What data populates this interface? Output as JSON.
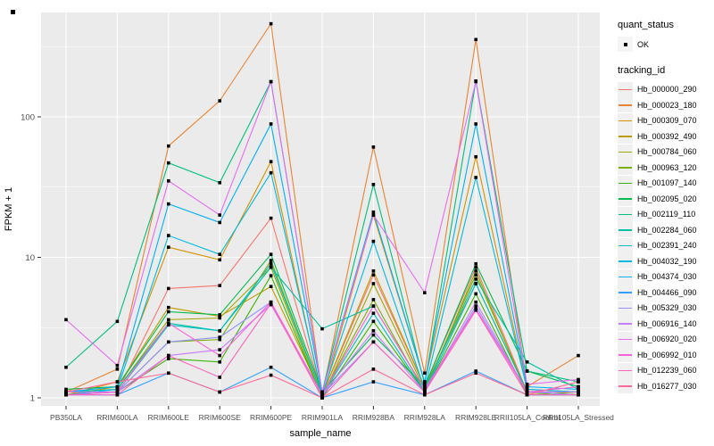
{
  "chart_data": {
    "type": "line",
    "title": "",
    "xlabel": "sample_name",
    "ylabel": "FPKM + 1",
    "y_scale": "log10",
    "y_ticks": [
      "1",
      "10",
      "100"
    ],
    "ylim": [
      1,
      550
    ],
    "grid": "on",
    "legend_position": "right",
    "point_shape": "filled-square-black",
    "categories": [
      "PB350LA",
      "RRIM600LA",
      "RRIM600LE",
      "RRIM600SE",
      "RRIM600PE",
      "RRIM901LA",
      "RRIM928BA",
      "RRIM928LA",
      "RRIM928LE",
      "RRII105LA_Control",
      "RRII105LA_Stressed"
    ],
    "series": [
      {
        "name": "Hb_000000_290",
        "color": "#F8766D",
        "values": [
          1.1,
          1.1,
          6.0,
          6.3,
          19,
          1.05,
          7.5,
          1.2,
          8.5,
          1.1,
          1.05
        ]
      },
      {
        "name": "Hb_000023_180",
        "color": "#EA8331",
        "values": [
          1.1,
          1.6,
          62,
          130,
          460,
          1.05,
          61,
          1.5,
          355,
          1.2,
          2.0
        ]
      },
      {
        "name": "Hb_000309_070",
        "color": "#D89000",
        "values": [
          1.05,
          1.3,
          11.8,
          9.6,
          48,
          1.0,
          20,
          1.3,
          52,
          1.15,
          1.1
        ]
      },
      {
        "name": "Hb_000392_490",
        "color": "#C09B00",
        "values": [
          1.05,
          1.2,
          4.4,
          3.8,
          6.2,
          1.05,
          8.0,
          1.2,
          6.5,
          1.1,
          1.05
        ]
      },
      {
        "name": "Hb_000784_060",
        "color": "#A3A500",
        "values": [
          1.1,
          1.15,
          3.6,
          3.7,
          8.5,
          1.0,
          6.5,
          1.15,
          7.5,
          1.1,
          1.05
        ]
      },
      {
        "name": "Hb_000963_120",
        "color": "#7CAE00",
        "values": [
          1.05,
          1.1,
          2.5,
          2.6,
          9.5,
          1.05,
          5.0,
          1.1,
          8.0,
          1.05,
          1.1
        ]
      },
      {
        "name": "Hb_001097_140",
        "color": "#39B600",
        "values": [
          1.05,
          1.1,
          1.9,
          1.8,
          7.4,
          1.0,
          3.5,
          1.1,
          5.5,
          1.05,
          1.05
        ]
      },
      {
        "name": "Hb_002095_020",
        "color": "#00BB4E",
        "values": [
          1.15,
          1.2,
          4.1,
          3.9,
          10.5,
          1.1,
          2.8,
          1.2,
          9.0,
          1.55,
          1.2
        ]
      },
      {
        "name": "Hb_002119_110",
        "color": "#00BF7D",
        "values": [
          1.65,
          3.5,
          47,
          34,
          178,
          1.1,
          33,
          1.25,
          180,
          1.55,
          1.3
        ]
      },
      {
        "name": "Hb_002284_060",
        "color": "#00C1A3",
        "values": [
          1.1,
          1.15,
          3.4,
          3.0,
          8.5,
          3.1,
          4.5,
          1.15,
          7.0,
          1.8,
          1.15
        ]
      },
      {
        "name": "Hb_002391_240",
        "color": "#00BFC4",
        "values": [
          1.1,
          1.1,
          3.3,
          3.0,
          9.0,
          1.05,
          4.0,
          1.1,
          6.5,
          1.1,
          1.1
        ]
      },
      {
        "name": "Hb_004032_190",
        "color": "#00BAE0",
        "values": [
          1.05,
          1.15,
          14.3,
          10.5,
          40,
          1.05,
          13,
          1.15,
          37,
          1.15,
          1.1
        ]
      },
      {
        "name": "Hb_004374_030",
        "color": "#00B0F6",
        "values": [
          1.1,
          1.2,
          24,
          17.7,
          89,
          1.1,
          21,
          1.3,
          89,
          1.2,
          1.15
        ]
      },
      {
        "name": "Hb_004466_090",
        "color": "#35A2FF",
        "values": [
          1.05,
          1.05,
          1.5,
          1.1,
          1.65,
          1.0,
          1.3,
          1.05,
          1.55,
          1.05,
          1.05
        ]
      },
      {
        "name": "Hb_005329_030",
        "color": "#9590FF",
        "values": [
          1.05,
          1.1,
          2.5,
          2.7,
          4.8,
          1.05,
          2.5,
          1.1,
          4.5,
          1.1,
          1.05
        ]
      },
      {
        "name": "Hb_006916_140",
        "color": "#C77CFF",
        "values": [
          1.1,
          1.1,
          2.0,
          2.2,
          4.6,
          1.05,
          3.0,
          1.1,
          4.8,
          1.1,
          1.1
        ]
      },
      {
        "name": "Hb_006920_020",
        "color": "#E76BF3",
        "values": [
          3.6,
          1.7,
          35,
          20,
          178,
          1.1,
          20,
          5.6,
          178,
          1.25,
          1.35
        ]
      },
      {
        "name": "Hb_006992_010",
        "color": "#FA62DB",
        "values": [
          1.05,
          1.1,
          3.4,
          2.0,
          4.8,
          1.05,
          4.5,
          1.15,
          4.3,
          1.1,
          1.2
        ]
      },
      {
        "name": "Hb_012239_060",
        "color": "#FF62BC",
        "values": [
          1.05,
          1.05,
          2.0,
          1.4,
          4.7,
          1.0,
          2.5,
          1.1,
          4.2,
          1.05,
          1.05
        ]
      },
      {
        "name": "Hb_016277_030",
        "color": "#FF6A98",
        "values": [
          1.1,
          1.3,
          1.5,
          1.1,
          1.45,
          1.0,
          1.6,
          1.05,
          1.5,
          1.05,
          1.3
        ]
      }
    ]
  },
  "axes": {
    "x_title": "sample_name",
    "y_title": "FPKM + 1",
    "y_tick_labels": [
      "100",
      "10",
      "1"
    ]
  },
  "legend": {
    "quant_status_title": "quant_status",
    "ok_label": "OK",
    "tracking_id_title": "tracking_id"
  },
  "colors": {
    "panel_background": "#EBEBEB",
    "gridline": "#FFFFFF",
    "tick_text": "#4D4D4D",
    "axis_title": "#000000",
    "point": "#000000",
    "legend_key_background": "#F0F0F0"
  }
}
